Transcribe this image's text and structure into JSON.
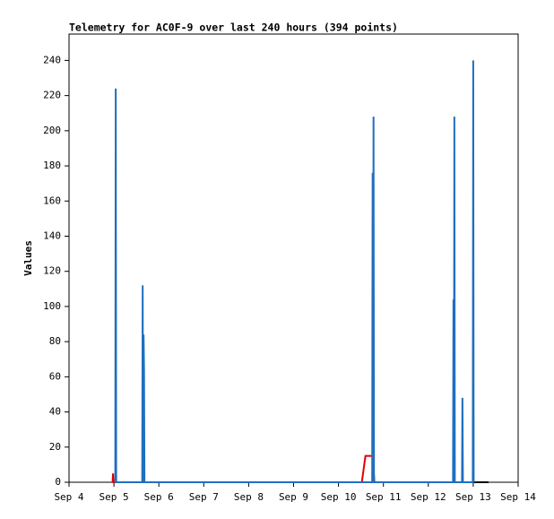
{
  "chart_data": {
    "type": "line",
    "title": "Telemetry for AC0F-9 over last 240 hours (394 points)",
    "y_label": "Values",
    "xlim": [
      4,
      14
    ],
    "ylim": [
      0,
      255
    ],
    "xticks": [
      {
        "value": 4,
        "label": "Sep 4"
      },
      {
        "value": 5,
        "label": "Sep 5"
      },
      {
        "value": 6,
        "label": "Sep 6"
      },
      {
        "value": 7,
        "label": "Sep 7"
      },
      {
        "value": 8,
        "label": "Sep 8"
      },
      {
        "value": 9,
        "label": "Sep 9"
      },
      {
        "value": 10,
        "label": "Sep 10"
      },
      {
        "value": 11,
        "label": "Sep 11"
      },
      {
        "value": 12,
        "label": "Sep 12"
      },
      {
        "value": 13,
        "label": "Sep 13"
      },
      {
        "value": 14,
        "label": "Sep 14"
      }
    ],
    "yticks": [
      0,
      20,
      40,
      60,
      80,
      100,
      120,
      140,
      160,
      180,
      200,
      220,
      240
    ],
    "grid": false,
    "series": [
      {
        "color": "#000000",
        "x": [
          5.0,
          13.34
        ],
        "values": [
          0,
          0
        ]
      },
      {
        "color": "#e00000",
        "x": [
          4.97,
          4.98,
          4.99,
          10.52,
          10.6,
          10.76,
          10.8
        ],
        "values": [
          0,
          5,
          0,
          0,
          15,
          15,
          0
        ]
      },
      {
        "color": "#1f6fbf",
        "x": [
          5.03,
          5.04,
          5.05,
          5.63,
          5.64,
          5.65,
          5.66,
          5.67,
          5.68,
          10.75,
          10.76,
          10.77,
          10.78,
          10.79,
          12.55,
          12.56,
          12.57,
          12.58,
          12.59,
          12.75,
          12.76,
          12.77,
          12.99,
          13.0,
          13.01
        ],
        "values": [
          0,
          224,
          0,
          0,
          112,
          0,
          84,
          64,
          0,
          0,
          176,
          0,
          208,
          0,
          0,
          104,
          0,
          208,
          0,
          0,
          48,
          0,
          0,
          240,
          0
        ]
      }
    ]
  }
}
